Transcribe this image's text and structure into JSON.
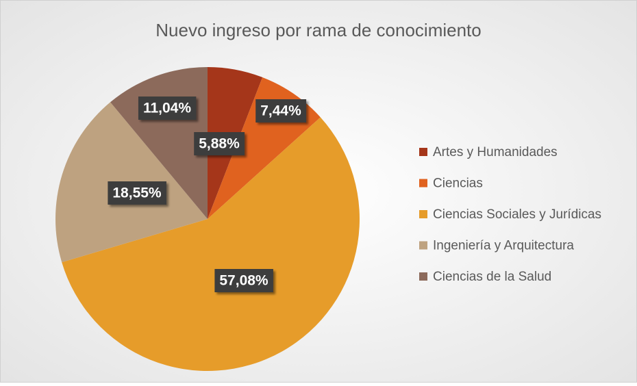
{
  "chart_data": {
    "type": "pie",
    "title": "Nuevo ingreso por rama de conocimiento",
    "categories": [
      "Artes y Humanidades",
      "Ciencias",
      "Ciencias Sociales y Jurídicas",
      "Ingeniería y Arquitectura",
      "Ciencias de la Salud"
    ],
    "values": [
      5.88,
      7.44,
      57.08,
      18.55,
      11.04
    ],
    "value_labels": [
      "5,88%",
      "7,44%",
      "57,08%",
      "18,55%",
      "11,04%"
    ],
    "colors": [
      "#A5361A",
      "#E0621F",
      "#E69C2A",
      "#BEA280",
      "#8C6A5B"
    ],
    "legend": "right"
  }
}
